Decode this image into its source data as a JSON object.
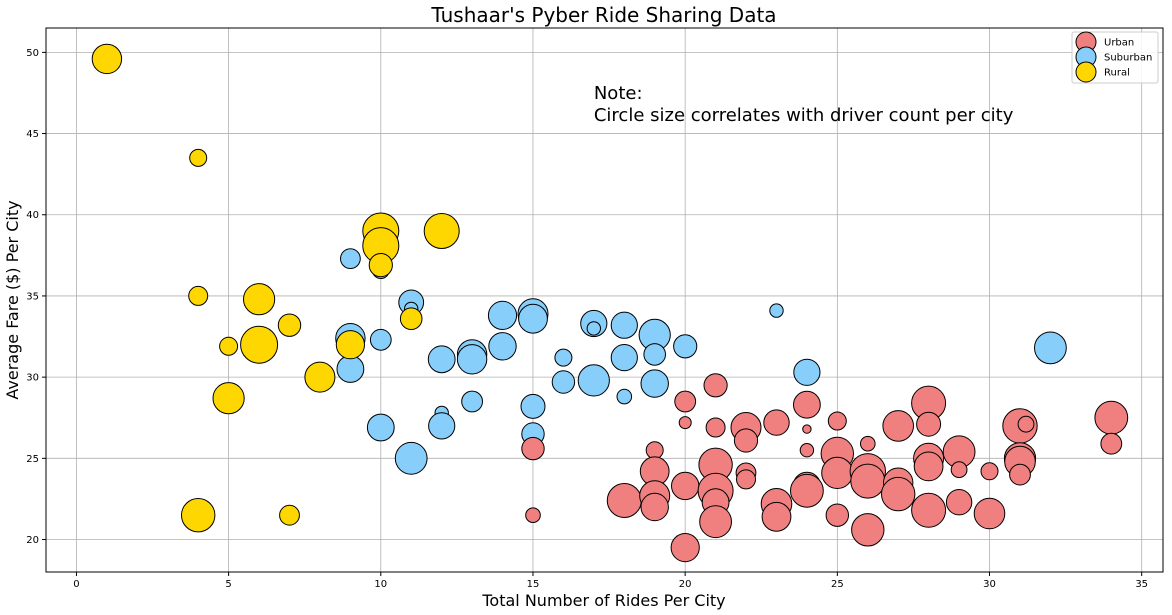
{
  "chart_data": {
    "type": "scatter",
    "title": "Tushaar's Pyber Ride Sharing Data",
    "xlabel": "Total Number of Rides Per City",
    "ylabel": "Average Fare ($) Per City",
    "xlim": [
      -1,
      35.7
    ],
    "ylim": [
      18,
      51.5
    ],
    "xticks": [
      0,
      5,
      10,
      15,
      20,
      25,
      30,
      35
    ],
    "yticks": [
      20,
      25,
      30,
      35,
      40,
      45,
      50
    ],
    "grid": true,
    "legend_position": "top-right",
    "annotation": {
      "lines": [
        "Note:",
        "Circle size correlates with driver count per city"
      ],
      "x": 17,
      "y": 47.5
    },
    "series": [
      {
        "name": "Suburban",
        "color": "#87CEFA",
        "points": [
          {
            "x": 9,
            "y": 37.3,
            "drivers": 11
          },
          {
            "x": 9,
            "y": 32.4,
            "drivers": 24
          },
          {
            "x": 9,
            "y": 30.5,
            "drivers": 20
          },
          {
            "x": 10,
            "y": 36.6,
            "drivers": 8
          },
          {
            "x": 10,
            "y": 32.3,
            "drivers": 12
          },
          {
            "x": 10,
            "y": 26.9,
            "drivers": 20
          },
          {
            "x": 11,
            "y": 34.6,
            "drivers": 17
          },
          {
            "x": 11,
            "y": 34.2,
            "drivers": 5
          },
          {
            "x": 11,
            "y": 25.0,
            "drivers": 28
          },
          {
            "x": 12,
            "y": 31.1,
            "drivers": 20
          },
          {
            "x": 12,
            "y": 27.8,
            "drivers": 5
          },
          {
            "x": 12,
            "y": 27.0,
            "drivers": 19
          },
          {
            "x": 13,
            "y": 31.4,
            "drivers": 24
          },
          {
            "x": 13,
            "y": 31.1,
            "drivers": 24
          },
          {
            "x": 13,
            "y": 28.5,
            "drivers": 12
          },
          {
            "x": 14,
            "y": 33.8,
            "drivers": 22
          },
          {
            "x": 14,
            "y": 31.9,
            "drivers": 21
          },
          {
            "x": 15,
            "y": 33.9,
            "drivers": 25
          },
          {
            "x": 15,
            "y": 33.6,
            "drivers": 23
          },
          {
            "x": 15,
            "y": 28.2,
            "drivers": 16
          },
          {
            "x": 15,
            "y": 26.5,
            "drivers": 14
          },
          {
            "x": 16,
            "y": 31.2,
            "drivers": 8
          },
          {
            "x": 16,
            "y": 29.7,
            "drivers": 14
          },
          {
            "x": 17,
            "y": 33.3,
            "drivers": 19
          },
          {
            "x": 17,
            "y": 33.0,
            "drivers": 5
          },
          {
            "x": 17,
            "y": 29.8,
            "drivers": 27
          },
          {
            "x": 18,
            "y": 33.2,
            "drivers": 19
          },
          {
            "x": 18,
            "y": 31.2,
            "drivers": 19
          },
          {
            "x": 18,
            "y": 28.8,
            "drivers": 6
          },
          {
            "x": 19,
            "y": 32.6,
            "drivers": 27
          },
          {
            "x": 19,
            "y": 31.4,
            "drivers": 13
          },
          {
            "x": 19,
            "y": 29.6,
            "drivers": 21
          },
          {
            "x": 20,
            "y": 31.9,
            "drivers": 15
          },
          {
            "x": 22,
            "y": 26.7,
            "drivers": 10
          },
          {
            "x": 23,
            "y": 34.1,
            "drivers": 5
          },
          {
            "x": 24,
            "y": 30.3,
            "drivers": 19
          },
          {
            "x": 32,
            "y": 31.8,
            "drivers": 28
          }
        ]
      },
      {
        "name": "Urban",
        "color": "#F08080",
        "points": [
          {
            "x": 15,
            "y": 25.6,
            "drivers": 14
          },
          {
            "x": 15,
            "y": 21.5,
            "drivers": 6
          },
          {
            "x": 18,
            "y": 22.4,
            "drivers": 32
          },
          {
            "x": 19,
            "y": 25.5,
            "drivers": 8
          },
          {
            "x": 19,
            "y": 24.2,
            "drivers": 23
          },
          {
            "x": 19,
            "y": 22.7,
            "drivers": 25
          },
          {
            "x": 19,
            "y": 22.0,
            "drivers": 21
          },
          {
            "x": 20,
            "y": 28.5,
            "drivers": 12
          },
          {
            "x": 20,
            "y": 27.2,
            "drivers": 4
          },
          {
            "x": 20,
            "y": 23.3,
            "drivers": 21
          },
          {
            "x": 20,
            "y": 19.5,
            "drivers": 22
          },
          {
            "x": 21,
            "y": 29.5,
            "drivers": 15
          },
          {
            "x": 21,
            "y": 26.9,
            "drivers": 10
          },
          {
            "x": 21,
            "y": 24.6,
            "drivers": 31
          },
          {
            "x": 21,
            "y": 23.0,
            "drivers": 34
          },
          {
            "x": 21,
            "y": 22.3,
            "drivers": 20
          },
          {
            "x": 21,
            "y": 21.1,
            "drivers": 28
          },
          {
            "x": 22,
            "y": 26.9,
            "drivers": 25
          },
          {
            "x": 22,
            "y": 26.1,
            "drivers": 15
          },
          {
            "x": 22,
            "y": 24.1,
            "drivers": 11
          },
          {
            "x": 22,
            "y": 23.7,
            "drivers": 10
          },
          {
            "x": 23,
            "y": 27.2,
            "drivers": 18
          },
          {
            "x": 23,
            "y": 22.5,
            "drivers": 5
          },
          {
            "x": 23,
            "y": 22.2,
            "drivers": 26
          },
          {
            "x": 23,
            "y": 21.4,
            "drivers": 23
          },
          {
            "x": 24,
            "y": 28.3,
            "drivers": 20
          },
          {
            "x": 24,
            "y": 26.8,
            "drivers": 2
          },
          {
            "x": 24,
            "y": 25.5,
            "drivers": 5
          },
          {
            "x": 24,
            "y": 23.3,
            "drivers": 21
          },
          {
            "x": 24,
            "y": 23.0,
            "drivers": 30
          },
          {
            "x": 25,
            "y": 27.3,
            "drivers": 9
          },
          {
            "x": 25,
            "y": 25.3,
            "drivers": 29
          },
          {
            "x": 25,
            "y": 24.1,
            "drivers": 27
          },
          {
            "x": 25,
            "y": 21.5,
            "drivers": 14
          },
          {
            "x": 26,
            "y": 25.9,
            "drivers": 6
          },
          {
            "x": 26,
            "y": 24.2,
            "drivers": 35
          },
          {
            "x": 26,
            "y": 23.6,
            "drivers": 32
          },
          {
            "x": 26,
            "y": 20.6,
            "drivers": 29
          },
          {
            "x": 27,
            "y": 27.0,
            "drivers": 26
          },
          {
            "x": 27,
            "y": 23.5,
            "drivers": 24
          },
          {
            "x": 27,
            "y": 22.8,
            "drivers": 31
          },
          {
            "x": 28,
            "y": 28.4,
            "drivers": 32
          },
          {
            "x": 28,
            "y": 27.1,
            "drivers": 16
          },
          {
            "x": 28,
            "y": 25.0,
            "drivers": 25
          },
          {
            "x": 28,
            "y": 24.5,
            "drivers": 23
          },
          {
            "x": 28,
            "y": 21.8,
            "drivers": 32
          },
          {
            "x": 29,
            "y": 25.4,
            "drivers": 28
          },
          {
            "x": 29,
            "y": 24.3,
            "drivers": 7
          },
          {
            "x": 29,
            "y": 22.3,
            "drivers": 18
          },
          {
            "x": 30,
            "y": 24.2,
            "drivers": 8
          },
          {
            "x": 30,
            "y": 21.6,
            "drivers": 26
          },
          {
            "x": 31,
            "y": 27.0,
            "drivers": 33
          },
          {
            "x": 31,
            "y": 25.0,
            "drivers": 27
          },
          {
            "x": 31,
            "y": 24.8,
            "drivers": 26
          },
          {
            "x": 31,
            "y": 24.0,
            "drivers": 12
          },
          {
            "x": 31.2,
            "y": 27.1,
            "drivers": 7
          },
          {
            "x": 34,
            "y": 27.5,
            "drivers": 30
          },
          {
            "x": 34,
            "y": 25.9,
            "drivers": 12
          }
        ]
      },
      {
        "name": "Rural",
        "color": "#FFD700",
        "points": [
          {
            "x": 1,
            "y": 49.6,
            "drivers": 24
          },
          {
            "x": 4,
            "y": 43.5,
            "drivers": 8
          },
          {
            "x": 4,
            "y": 35.0,
            "drivers": 10
          },
          {
            "x": 4,
            "y": 21.5,
            "drivers": 31
          },
          {
            "x": 5,
            "y": 31.9,
            "drivers": 9
          },
          {
            "x": 5,
            "y": 28.7,
            "drivers": 27
          },
          {
            "x": 6,
            "y": 34.8,
            "drivers": 27
          },
          {
            "x": 6,
            "y": 32.0,
            "drivers": 38
          },
          {
            "x": 7,
            "y": 33.2,
            "drivers": 14
          },
          {
            "x": 7,
            "y": 21.5,
            "drivers": 11
          },
          {
            "x": 8,
            "y": 30.0,
            "drivers": 25
          },
          {
            "x": 9,
            "y": 32.0,
            "drivers": 22
          },
          {
            "x": 10,
            "y": 39.0,
            "drivers": 36
          },
          {
            "x": 10,
            "y": 38.1,
            "drivers": 36
          },
          {
            "x": 10,
            "y": 36.9,
            "drivers": 15
          },
          {
            "x": 11,
            "y": 33.6,
            "drivers": 13
          },
          {
            "x": 12,
            "y": 39.0,
            "drivers": 34
          }
        ]
      }
    ]
  }
}
